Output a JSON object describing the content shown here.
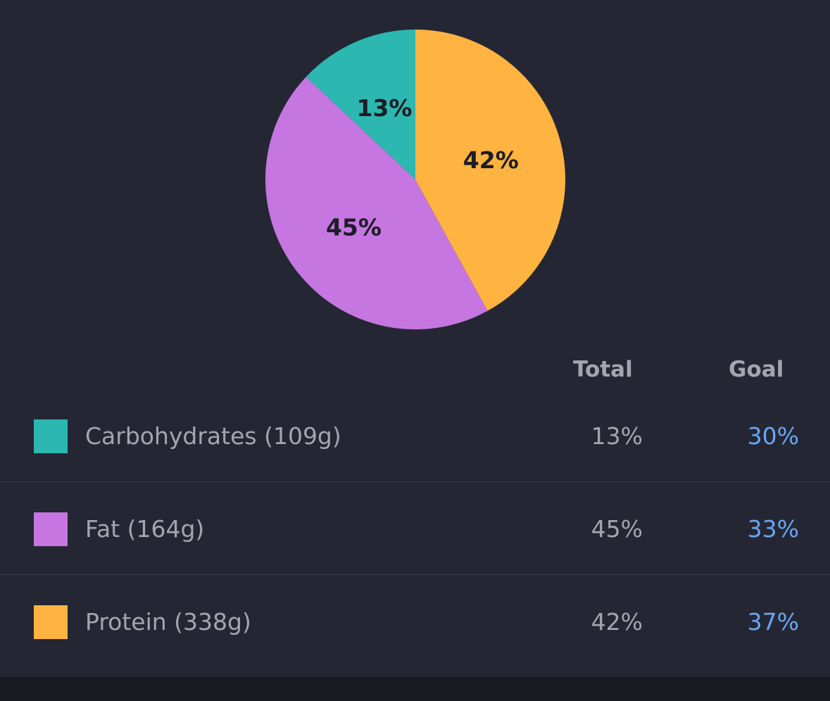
{
  "chart_data": {
    "type": "pie",
    "slices": [
      {
        "name": "Carbohydrates",
        "value": 13,
        "label": "13%",
        "color": "#2cb8b0"
      },
      {
        "name": "Fat",
        "value": 45,
        "label": "45%",
        "color": "#c576e0"
      },
      {
        "name": "Protein",
        "value": 42,
        "label": "42%",
        "color": "#ffb340"
      }
    ]
  },
  "table": {
    "headers": {
      "total": "Total",
      "goal": "Goal"
    },
    "goal_color": "#6aa5f5",
    "rows": [
      {
        "label": "Carbohydrates (109g)",
        "total": "13%",
        "goal": "30%",
        "color": "#2cb8b0"
      },
      {
        "label": "Fat (164g)",
        "total": "45%",
        "goal": "33%",
        "color": "#c576e0"
      },
      {
        "label": "Protein (338g)",
        "total": "42%",
        "goal": "37%",
        "color": "#ffb340"
      }
    ]
  }
}
